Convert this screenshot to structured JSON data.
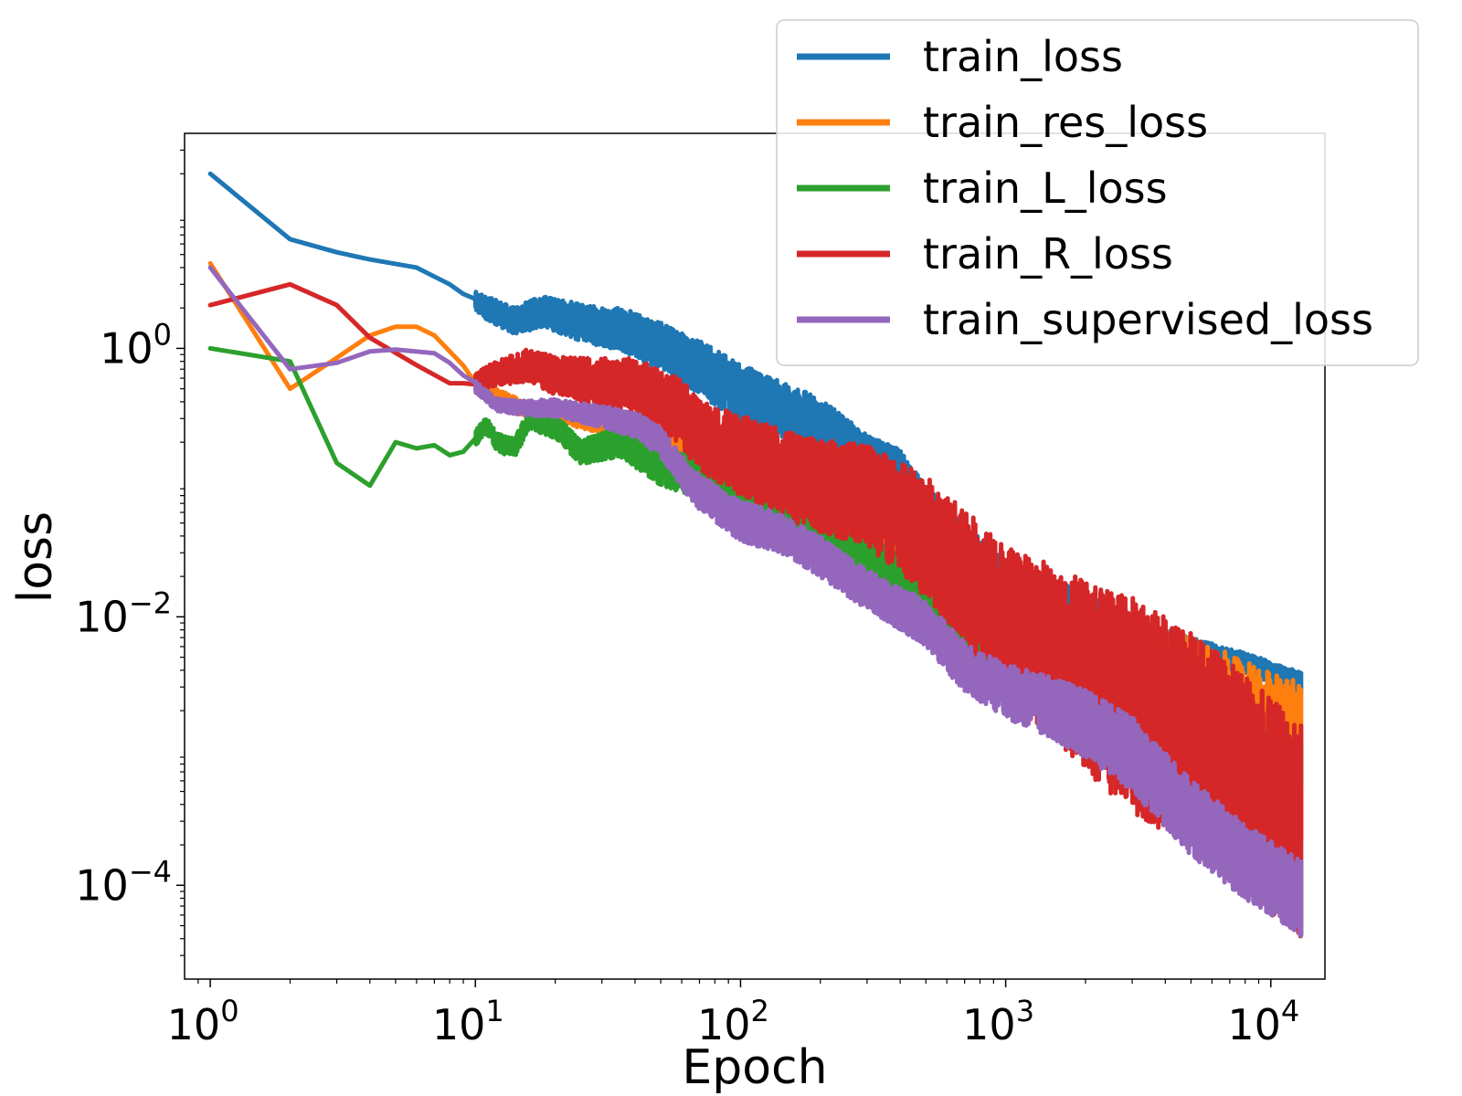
{
  "chart_data": {
    "type": "line",
    "xscale": "log",
    "yscale": "log",
    "xlabel": "Epoch",
    "ylabel": "loss",
    "xlim": [
      0.8,
      16000
    ],
    "ylim": [
      2e-05,
      40
    ],
    "grid": false,
    "legend_position": "upper-right (outside top)",
    "xticks": [
      {
        "base": "10",
        "exp": "0",
        "value": 1
      },
      {
        "base": "10",
        "exp": "1",
        "value": 10
      },
      {
        "base": "10",
        "exp": "2",
        "value": 100
      },
      {
        "base": "10",
        "exp": "3",
        "value": 1000
      },
      {
        "base": "10",
        "exp": "4",
        "value": 10000
      }
    ],
    "yticks": [
      {
        "base": "10",
        "exp": "0",
        "value": 1
      },
      {
        "base": "10",
        "exp": "−2",
        "value": 0.01
      },
      {
        "base": "10",
        "exp": "−4",
        "value": 0.0001
      }
    ],
    "series": [
      {
        "name": "train_loss",
        "color": "#1f77b4",
        "noise": [
          0.03,
          0.08,
          0.15,
          0.22,
          0.18,
          0.12,
          0.08
        ],
        "points": [
          [
            1,
            20
          ],
          [
            2,
            6.5
          ],
          [
            3,
            5.2
          ],
          [
            4,
            4.6
          ],
          [
            6,
            4.0
          ],
          [
            8,
            3.0
          ],
          [
            10,
            2.2
          ],
          [
            14,
            1.6
          ],
          [
            18,
            1.9
          ],
          [
            25,
            1.55
          ],
          [
            35,
            1.4
          ],
          [
            50,
            1.05
          ],
          [
            70,
            0.72
          ],
          [
            100,
            0.46
          ],
          [
            150,
            0.34
          ],
          [
            200,
            0.27
          ],
          [
            300,
            0.15
          ],
          [
            400,
            0.12
          ],
          [
            500,
            0.066
          ],
          [
            700,
            0.035
          ],
          [
            1000,
            0.02
          ],
          [
            1500,
            0.015
          ],
          [
            2000,
            0.012
          ],
          [
            3000,
            0.008
          ],
          [
            5000,
            0.0058
          ],
          [
            8000,
            0.0045
          ],
          [
            13000,
            0.0032
          ]
        ]
      },
      {
        "name": "train_res_loss",
        "color": "#ff7f0e",
        "noise": [
          0.02,
          0.04,
          0.08,
          0.15,
          0.15,
          0.35,
          0.6
        ],
        "points": [
          [
            1,
            4.3
          ],
          [
            2,
            0.5
          ],
          [
            3,
            0.85
          ],
          [
            4,
            1.25
          ],
          [
            5,
            1.45
          ],
          [
            6,
            1.45
          ],
          [
            7,
            1.25
          ],
          [
            8,
            0.95
          ],
          [
            10,
            0.6
          ],
          [
            12,
            0.45
          ],
          [
            15,
            0.36
          ],
          [
            20,
            0.33
          ],
          [
            30,
            0.28
          ],
          [
            50,
            0.22
          ],
          [
            70,
            0.15
          ],
          [
            100,
            0.09
          ],
          [
            150,
            0.058
          ],
          [
            200,
            0.046
          ],
          [
            300,
            0.031
          ],
          [
            500,
            0.02
          ],
          [
            700,
            0.0115
          ],
          [
            1000,
            0.007
          ],
          [
            1500,
            0.0042
          ],
          [
            2000,
            0.003
          ],
          [
            3000,
            0.0022
          ],
          [
            5000,
            0.0018
          ],
          [
            8000,
            0.0012
          ],
          [
            13000,
            0.0008
          ]
        ]
      },
      {
        "name": "train_L_loss",
        "color": "#2ca02c",
        "noise": [
          0.03,
          0.06,
          0.1,
          0.18,
          0.2,
          0.2,
          0.15
        ],
        "points": [
          [
            1,
            1.0
          ],
          [
            2,
            0.8
          ],
          [
            3,
            0.14
          ],
          [
            4,
            0.095
          ],
          [
            5,
            0.2
          ],
          [
            6,
            0.18
          ],
          [
            7,
            0.19
          ],
          [
            8,
            0.16
          ],
          [
            9,
            0.17
          ],
          [
            11,
            0.27
          ],
          [
            12,
            0.2
          ],
          [
            14,
            0.18
          ],
          [
            16,
            0.3
          ],
          [
            20,
            0.26
          ],
          [
            25,
            0.17
          ],
          [
            35,
            0.2
          ],
          [
            50,
            0.13
          ],
          [
            70,
            0.11
          ],
          [
            100,
            0.08
          ],
          [
            150,
            0.06
          ],
          [
            200,
            0.045
          ],
          [
            300,
            0.032
          ],
          [
            400,
            0.017
          ],
          [
            500,
            0.011
          ],
          [
            700,
            0.006
          ],
          [
            1000,
            0.0045
          ],
          [
            1500,
            0.0033
          ],
          [
            2000,
            0.0025
          ],
          [
            3000,
            0.0021
          ],
          [
            5000,
            0.0015
          ],
          [
            8000,
            0.0011
          ],
          [
            13000,
            0.0008
          ]
        ]
      },
      {
        "name": "train_R_loss",
        "color": "#d62728",
        "noise": [
          0.03,
          0.08,
          0.18,
          0.3,
          0.38,
          0.55,
          0.8
        ],
        "points": [
          [
            1,
            2.1
          ],
          [
            2,
            3.0
          ],
          [
            3,
            2.1
          ],
          [
            4,
            1.2
          ],
          [
            6,
            0.75
          ],
          [
            8,
            0.55
          ],
          [
            10,
            0.55
          ],
          [
            12,
            0.65
          ],
          [
            16,
            0.75
          ],
          [
            20,
            0.62
          ],
          [
            30,
            0.56
          ],
          [
            40,
            0.52
          ],
          [
            60,
            0.33
          ],
          [
            70,
            0.22
          ],
          [
            100,
            0.16
          ],
          [
            150,
            0.115
          ],
          [
            200,
            0.095
          ],
          [
            300,
            0.08
          ],
          [
            500,
            0.04
          ],
          [
            700,
            0.02
          ],
          [
            1000,
            0.0095
          ],
          [
            1500,
            0.0055
          ],
          [
            2000,
            0.0036
          ],
          [
            3000,
            0.0022
          ],
          [
            5000,
            0.0012
          ],
          [
            8000,
            0.0006
          ],
          [
            13000,
            0.00025
          ]
        ]
      },
      {
        "name": "train_supervised_loss",
        "color": "#9467bd",
        "noise": [
          0.02,
          0.04,
          0.08,
          0.15,
          0.15,
          0.2,
          0.28
        ],
        "points": [
          [
            1,
            4.0
          ],
          [
            2,
            0.7
          ],
          [
            3,
            0.78
          ],
          [
            4,
            0.95
          ],
          [
            5,
            0.98
          ],
          [
            7,
            0.92
          ],
          [
            8,
            0.78
          ],
          [
            10,
            0.52
          ],
          [
            12,
            0.38
          ],
          [
            15,
            0.36
          ],
          [
            20,
            0.36
          ],
          [
            30,
            0.31
          ],
          [
            40,
            0.27
          ],
          [
            50,
            0.2
          ],
          [
            60,
            0.12
          ],
          [
            70,
            0.085
          ],
          [
            100,
            0.052
          ],
          [
            150,
            0.04
          ],
          [
            200,
            0.028
          ],
          [
            300,
            0.016
          ],
          [
            500,
            0.009
          ],
          [
            700,
            0.0042
          ],
          [
            1000,
            0.0028
          ],
          [
            1500,
            0.0021
          ],
          [
            2000,
            0.0016
          ],
          [
            3000,
            0.00095
          ],
          [
            5000,
            0.00032
          ],
          [
            8000,
            0.00015
          ],
          [
            13000,
            8e-05
          ]
        ]
      }
    ]
  }
}
